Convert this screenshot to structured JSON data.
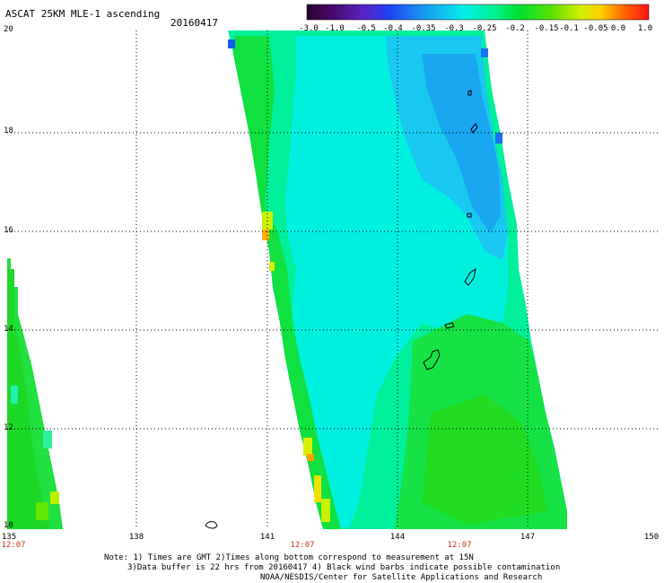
{
  "header": {
    "title": "ASCAT 25KM MLE-1 ascending",
    "date": "20160417"
  },
  "colorbar": {
    "labels": [
      "-3.0",
      "-1.0",
      "-0.5",
      "-0.4",
      "-0.35",
      "-0.3",
      "-0.25",
      "-0.2",
      "-0.15",
      "-0.1",
      "-0.05",
      "0.0",
      "1.0"
    ],
    "colors": [
      "#2a0030",
      "#5a1690",
      "#5a34d8",
      "#1f49f0",
      "#1f8af0",
      "#17b7f0",
      "#00e8e8",
      "#00f0a0",
      "#00e040",
      "#40e000",
      "#a0e800",
      "#f0f000",
      "#ffa000",
      "#ff5000",
      "#ff1000"
    ]
  },
  "axes": {
    "latitudes": [
      "20",
      "18",
      "16",
      "14",
      "12",
      "10"
    ],
    "longitudes": [
      "135",
      "138",
      "141",
      "144",
      "147",
      "150"
    ],
    "times": [
      "12:07",
      "12:07",
      "12:07"
    ]
  },
  "notes": {
    "line1": "Note: 1) Times are GMT 2)Times along bottom correspond to measurement at 15N",
    "line2": "3)Data buffer is 22 hrs from 20160417 4) Black wind barbs indicate possible contamination",
    "line3": "NOAA/NESDIS/Center for Satellite Applications and Research"
  }
}
